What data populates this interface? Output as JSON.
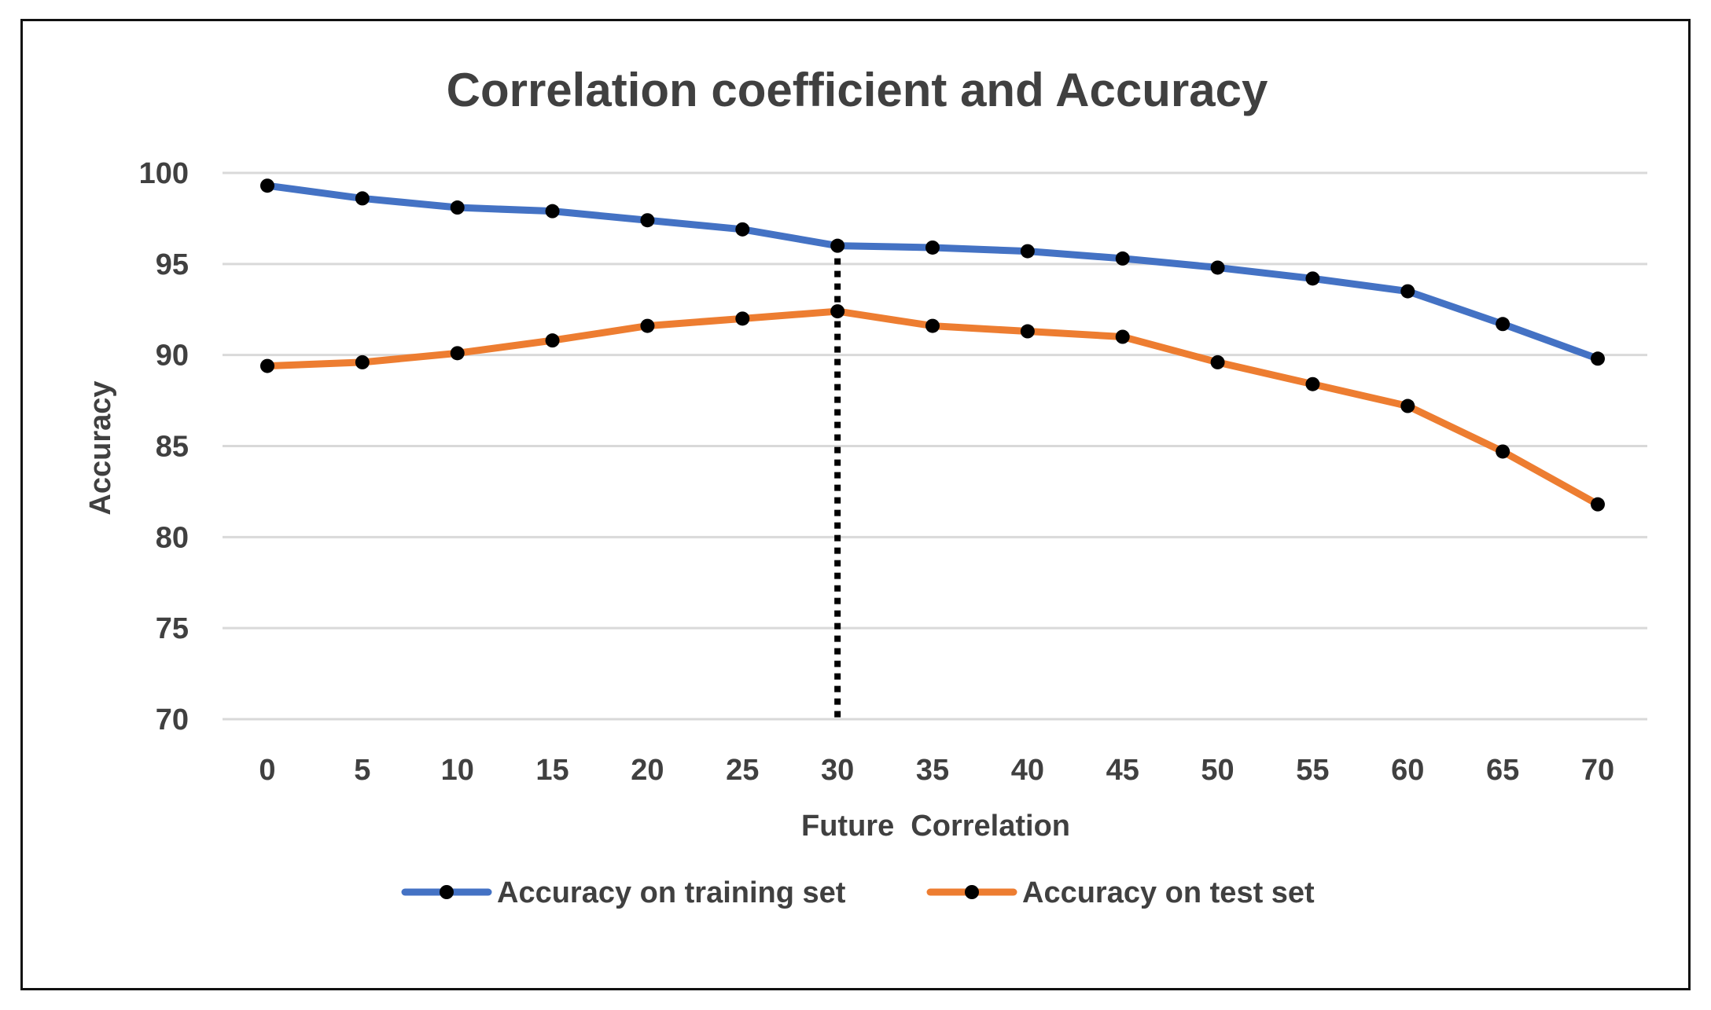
{
  "chart_data": {
    "type": "line",
    "title": "Correlation coefficient and Accuracy",
    "xlabel": "Future  Correlation",
    "ylabel": "Accuracy",
    "categories": [
      "0",
      "5",
      "10",
      "15",
      "20",
      "25",
      "30",
      "35",
      "40",
      "45",
      "50",
      "55",
      "60",
      "65",
      "70"
    ],
    "ylim": [
      70,
      100
    ],
    "yticks": [
      "70",
      "75",
      "80",
      "85",
      "90",
      "95",
      "100"
    ],
    "grid": true,
    "legend_position": "bottom",
    "series": [
      {
        "name": "Accuracy on training set",
        "color": "#4472C4",
        "values": [
          99.3,
          98.6,
          98.1,
          97.9,
          97.4,
          96.9,
          96.0,
          95.9,
          95.7,
          95.3,
          94.8,
          94.2,
          93.5,
          91.7,
          89.8
        ]
      },
      {
        "name": "Accuracy on test set",
        "color": "#ED7D31",
        "values": [
          89.4,
          89.6,
          90.1,
          90.8,
          91.6,
          92.0,
          92.4,
          91.6,
          91.3,
          91.0,
          89.6,
          88.4,
          87.2,
          84.7,
          81.8
        ]
      }
    ],
    "annotations": [
      {
        "type": "vertical-dotted-line",
        "category": "30",
        "from_series": "Accuracy on training set"
      }
    ],
    "marker_color": "#000000",
    "grid_color": "#D9D9D9"
  }
}
